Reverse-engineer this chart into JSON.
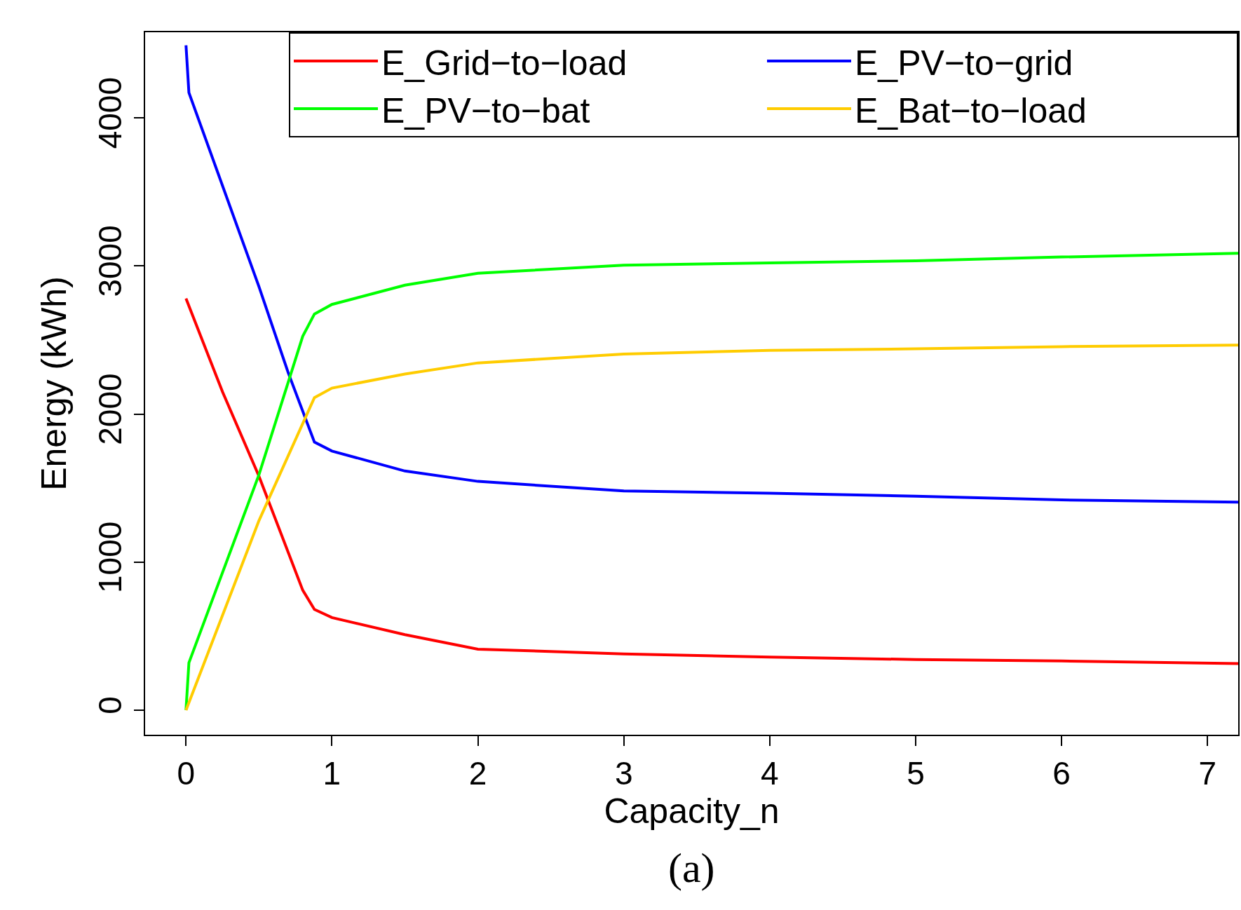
{
  "chart_data": {
    "type": "line",
    "xlabel": "Capacity_n",
    "ylabel": "Energy (kWh)",
    "annotations": [
      "(a)"
    ],
    "xlim": [
      -0.28,
      7.21
    ],
    "ylim": [
      -166,
      4578
    ],
    "xticks": [
      0,
      1,
      2,
      3,
      4,
      5,
      6,
      7
    ],
    "yticks": [
      0,
      1000,
      2000,
      3000,
      4000
    ],
    "legend": "top right",
    "line_style": "solid",
    "marker": "none",
    "series": [
      {
        "name": "E_Grid−to−load",
        "color": "#ff0000",
        "x": [
          0,
          0.25,
          0.5,
          0.8,
          0.88,
          1,
          1.5,
          2,
          3,
          4,
          5,
          6,
          7.21
        ],
        "values": [
          2780,
          2150,
          1580,
          810,
          680,
          625,
          510,
          412,
          380,
          358,
          342,
          332,
          315
        ]
      },
      {
        "name": "E_PV−to−grid",
        "color": "#0000ff",
        "x": [
          0,
          0.02,
          0.5,
          0.7,
          0.88,
          1,
          1.5,
          2,
          3,
          4,
          5,
          6,
          7.21
        ],
        "values": [
          4490,
          4170,
          2860,
          2280,
          1810,
          1750,
          1615,
          1545,
          1480,
          1465,
          1445,
          1420,
          1405
        ]
      },
      {
        "name": "E_PV−to−bat",
        "color": "#00ff00",
        "x": [
          0,
          0.02,
          0.5,
          0.8,
          0.88,
          1,
          1.5,
          2,
          3,
          4,
          5,
          6,
          7.21
        ],
        "values": [
          0,
          320,
          1590,
          2525,
          2675,
          2740,
          2870,
          2950,
          3005,
          3020,
          3035,
          3060,
          3085
        ]
      },
      {
        "name": "E_Bat−to−load",
        "color": "#ffcc00",
        "x": [
          0,
          0.5,
          0.88,
          1,
          1.5,
          2,
          3,
          4,
          5,
          6,
          7.21
        ],
        "values": [
          0,
          1280,
          2110,
          2175,
          2270,
          2345,
          2405,
          2430,
          2440,
          2455,
          2465
        ]
      }
    ]
  }
}
